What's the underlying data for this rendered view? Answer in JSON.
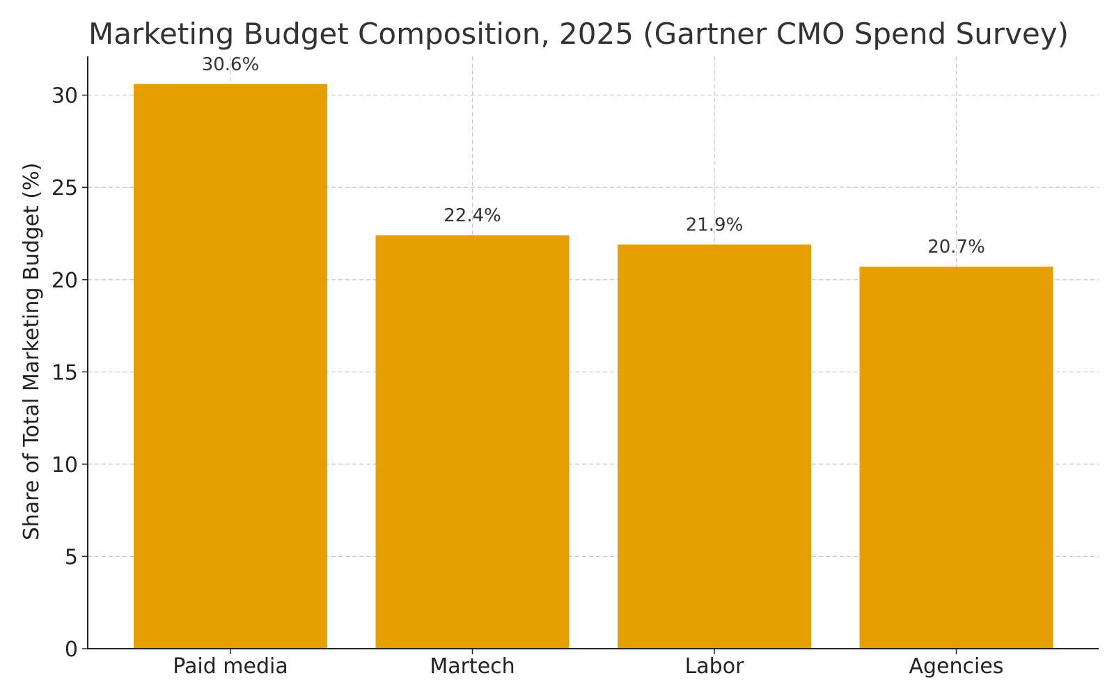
{
  "chart_data": {
    "type": "bar",
    "title": "Marketing Budget Composition, 2025 (Gartner CMO Spend Survey)",
    "xlabel": "",
    "ylabel": "Share of Total Marketing Budget (%)",
    "categories": [
      "Paid media",
      "Martech",
      "Labor",
      "Agencies"
    ],
    "values": [
      30.6,
      22.4,
      21.9,
      20.7
    ],
    "data_labels": [
      "30.6%",
      "22.4%",
      "21.9%",
      "20.7%"
    ],
    "ylim": [
      0,
      32.1
    ],
    "yticks": [
      0,
      5,
      10,
      15,
      20,
      25,
      30
    ],
    "grid": true,
    "bar_color": "#e69f00"
  }
}
